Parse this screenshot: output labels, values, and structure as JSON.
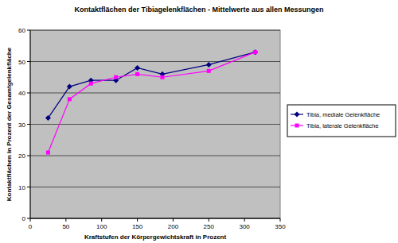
{
  "chart_data": {
    "type": "line",
    "title": "Kontaktflächen der Tibiagelenkflächen - Mittelwerte aus allen Messungen",
    "x_label": "Kraftstufen der Körpergewichtskraft in Prozent",
    "y_label": "Kontaktflächen in Prozent der Gesamtgelenkfläche",
    "x": [
      25,
      55,
      85,
      120,
      150,
      185,
      250,
      315
    ],
    "series": [
      {
        "name": "Tibia, mediale Gelenkfläche",
        "color": "#000080",
        "marker": "diamond",
        "values": [
          32,
          42,
          44,
          44,
          48,
          46,
          49,
          53
        ]
      },
      {
        "name": "Tibia, laterale Gelenkfläche",
        "color": "#ff00ff",
        "marker": "square",
        "values": [
          21,
          38,
          43,
          45,
          46,
          45,
          47,
          53
        ]
      }
    ],
    "xlim": [
      0,
      350
    ],
    "xticks": [
      0,
      50,
      100,
      150,
      200,
      250,
      300,
      350
    ],
    "ylim": [
      0,
      60
    ],
    "yticks": [
      0,
      10,
      20,
      30,
      40,
      50,
      60
    ],
    "grid": true,
    "legend": "right"
  }
}
